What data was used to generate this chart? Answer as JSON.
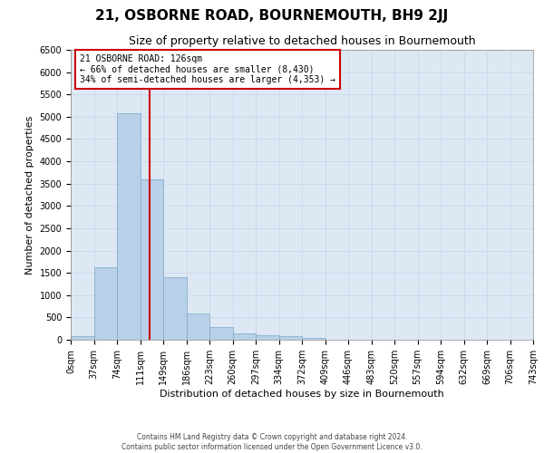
{
  "title": "21, OSBORNE ROAD, BOURNEMOUTH, BH9 2JJ",
  "subtitle": "Size of property relative to detached houses in Bournemouth",
  "xlabel": "Distribution of detached houses by size in Bournemouth",
  "ylabel": "Number of detached properties",
  "footer_line1": "Contains HM Land Registry data © Crown copyright and database right 2024.",
  "footer_line2": "Contains public sector information licensed under the Open Government Licence v3.0.",
  "bin_edges": [
    "0sqm",
    "37sqm",
    "74sqm",
    "111sqm",
    "149sqm",
    "186sqm",
    "223sqm",
    "260sqm",
    "297sqm",
    "334sqm",
    "372sqm",
    "409sqm",
    "446sqm",
    "483sqm",
    "520sqm",
    "557sqm",
    "594sqm",
    "632sqm",
    "669sqm",
    "706sqm",
    "743sqm"
  ],
  "bar_values": [
    75,
    1620,
    5080,
    3590,
    1410,
    580,
    290,
    145,
    100,
    75,
    40,
    0,
    0,
    0,
    0,
    0,
    0,
    0,
    0,
    0
  ],
  "bar_color": "#b8d0e8",
  "bar_edge_color": "#7aaac8",
  "vline_color": "#cc0000",
  "vline_x": 3.405,
  "annotation_text_line1": "21 OSBORNE ROAD: 126sqm",
  "annotation_text_line2": "← 66% of detached houses are smaller (8,430)",
  "annotation_text_line3": "34% of semi-detached houses are larger (4,353) →",
  "annotation_box_facecolor": "#ffffff",
  "annotation_box_edgecolor": "#cc0000",
  "ylim": [
    0,
    6500
  ],
  "yticks": [
    0,
    500,
    1000,
    1500,
    2000,
    2500,
    3000,
    3500,
    4000,
    4500,
    5000,
    5500,
    6000,
    6500
  ],
  "grid_color": "#c8d4e8",
  "background_color": "#dde8f4",
  "title_fontsize": 11,
  "subtitle_fontsize": 9,
  "xlabel_fontsize": 8,
  "ylabel_fontsize": 8,
  "tick_fontsize": 7,
  "annot_fontsize": 7,
  "footer_fontsize": 5.5
}
